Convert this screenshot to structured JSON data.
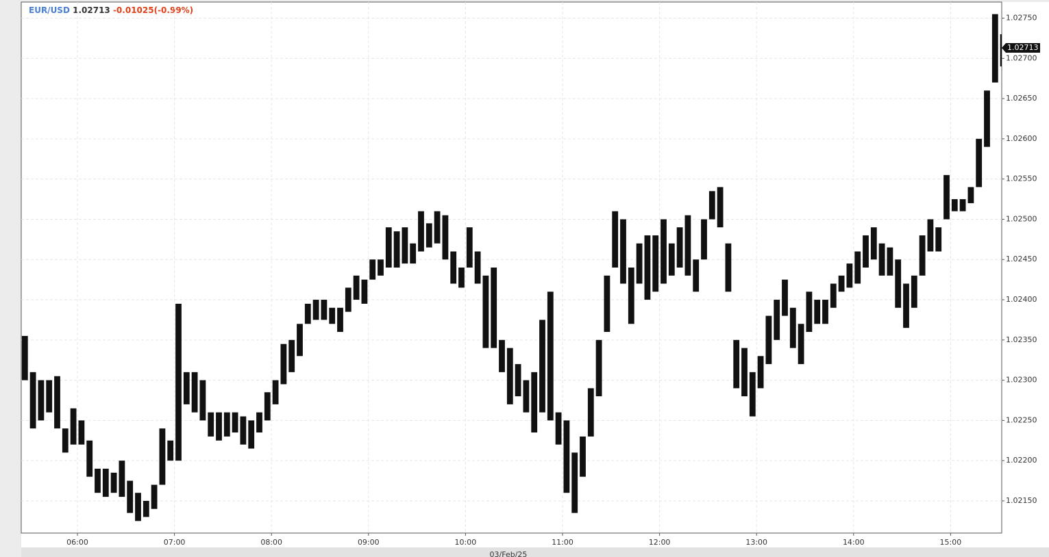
{
  "chart_data": {
    "type": "range_bar",
    "symbol": "EUR/USD",
    "last_price": {
      "value": 1.02713,
      "label": "1.02713"
    },
    "change": "-0.01025(-0.99%)",
    "date_label": "03/Feb/25",
    "x": [
      "05:25",
      "05:30",
      "05:35",
      "05:40",
      "05:45",
      "05:50",
      "05:55",
      "06:00",
      "06:05",
      "06:10",
      "06:15",
      "06:20",
      "06:25",
      "06:30",
      "06:35",
      "06:40",
      "06:45",
      "06:50",
      "06:55",
      "07:00",
      "07:05",
      "07:10",
      "07:15",
      "07:20",
      "07:25",
      "07:30",
      "07:35",
      "07:40",
      "07:45",
      "07:50",
      "07:55",
      "08:00",
      "08:05",
      "08:10",
      "08:15",
      "08:20",
      "08:25",
      "08:30",
      "08:35",
      "08:40",
      "08:45",
      "08:50",
      "08:55",
      "09:00",
      "09:05",
      "09:10",
      "09:15",
      "09:20",
      "09:25",
      "09:30",
      "09:35",
      "09:40",
      "09:45",
      "09:50",
      "09:55",
      "10:00",
      "10:05",
      "10:10",
      "10:15",
      "10:20",
      "10:25",
      "10:30",
      "10:35",
      "10:40",
      "10:45",
      "10:50",
      "10:55",
      "11:00",
      "11:05",
      "11:10",
      "11:15",
      "11:20",
      "11:25",
      "11:30",
      "11:35",
      "11:40",
      "11:45",
      "11:50",
      "11:55",
      "12:00",
      "12:05",
      "12:10",
      "12:15",
      "12:20",
      "12:25",
      "12:30",
      "12:35",
      "12:40",
      "12:45",
      "12:50",
      "12:55",
      "13:00",
      "13:05",
      "13:10",
      "13:15",
      "13:20",
      "13:25",
      "13:30",
      "13:35",
      "13:40",
      "13:45",
      "13:50",
      "13:55",
      "14:00",
      "14:05",
      "14:10",
      "14:15",
      "14:20",
      "14:25",
      "14:30",
      "14:35",
      "14:40",
      "14:45",
      "14:50",
      "14:55",
      "15:00",
      "15:05",
      "15:10",
      "15:15",
      "15:20",
      "15:25",
      "15:30"
    ],
    "series": [
      {
        "name": "EUR/USD",
        "color": "#111111",
        "high": [
          1.02355,
          1.0231,
          1.023,
          1.023,
          1.02305,
          1.0224,
          1.02265,
          1.0225,
          1.02225,
          1.0219,
          1.0219,
          1.02185,
          1.022,
          1.02175,
          1.0216,
          1.0215,
          1.0217,
          1.0224,
          1.02225,
          1.02395,
          1.0231,
          1.0231,
          1.023,
          1.0226,
          1.0226,
          1.0226,
          1.0226,
          1.02255,
          1.0225,
          1.0226,
          1.02285,
          1.023,
          1.02345,
          1.0235,
          1.0237,
          1.02395,
          1.024,
          1.024,
          1.0239,
          1.0239,
          1.02415,
          1.0243,
          1.02425,
          1.0245,
          1.0245,
          1.0249,
          1.02485,
          1.0249,
          1.0247,
          1.0251,
          1.02495,
          1.0251,
          1.02505,
          1.0246,
          1.0244,
          1.0249,
          1.0246,
          1.0243,
          1.0244,
          1.0235,
          1.0234,
          1.0232,
          1.023,
          1.0231,
          1.02375,
          1.0241,
          1.0226,
          1.0225,
          1.0221,
          1.0223,
          1.0229,
          1.0235,
          1.0243,
          1.0251,
          1.025,
          1.0244,
          1.0247,
          1.0248,
          1.0248,
          1.025,
          1.0247,
          1.0249,
          1.02505,
          1.0245,
          1.025,
          1.02535,
          1.0254,
          1.0247,
          1.0235,
          1.0234,
          1.0231,
          1.0233,
          1.0238,
          1.024,
          1.02425,
          1.0239,
          1.0237,
          1.0241,
          1.024,
          1.024,
          1.0242,
          1.0243,
          1.02445,
          1.0246,
          1.0248,
          1.0249,
          1.0247,
          1.02465,
          1.0245,
          1.0242,
          1.0243,
          1.0248,
          1.025,
          1.0249,
          1.02555,
          1.02525,
          1.02525,
          1.0254,
          1.026,
          1.0266,
          1.02755,
          1.0273
        ],
        "low": [
          1.023,
          1.0224,
          1.0225,
          1.0226,
          1.0224,
          1.0221,
          1.0222,
          1.0222,
          1.0218,
          1.0216,
          1.02155,
          1.0216,
          1.02155,
          1.02135,
          1.02125,
          1.0213,
          1.0214,
          1.0217,
          1.022,
          1.022,
          1.0227,
          1.0226,
          1.0225,
          1.0223,
          1.02225,
          1.0223,
          1.02235,
          1.0222,
          1.02215,
          1.02235,
          1.0225,
          1.0227,
          1.02295,
          1.0231,
          1.0233,
          1.0237,
          1.02375,
          1.02375,
          1.0237,
          1.0236,
          1.02385,
          1.024,
          1.02395,
          1.02425,
          1.0243,
          1.0244,
          1.0244,
          1.02445,
          1.02445,
          1.0246,
          1.02465,
          1.0247,
          1.0245,
          1.0242,
          1.02415,
          1.0244,
          1.0242,
          1.0234,
          1.0234,
          1.0231,
          1.0227,
          1.0228,
          1.0226,
          1.02235,
          1.0226,
          1.0225,
          1.0222,
          1.0216,
          1.02135,
          1.0218,
          1.0223,
          1.0228,
          1.0236,
          1.0244,
          1.0242,
          1.0237,
          1.0242,
          1.024,
          1.0241,
          1.0242,
          1.0243,
          1.0244,
          1.0243,
          1.0241,
          1.0245,
          1.025,
          1.0249,
          1.0241,
          1.0229,
          1.0228,
          1.02255,
          1.0229,
          1.0232,
          1.0235,
          1.0238,
          1.0234,
          1.0232,
          1.0236,
          1.0237,
          1.0237,
          1.0239,
          1.0241,
          1.02415,
          1.0242,
          1.0244,
          1.0245,
          1.0243,
          1.0243,
          1.0239,
          1.02365,
          1.0239,
          1.0243,
          1.0246,
          1.0246,
          1.025,
          1.0251,
          1.0251,
          1.0252,
          1.0254,
          1.0259,
          1.0267,
          1.0269
        ]
      }
    ],
    "ylim": [
      1.0211,
      1.0277
    ],
    "yticks": [
      {
        "value": 1.0215,
        "label": "1.02150"
      },
      {
        "value": 1.022,
        "label": "1.02200"
      },
      {
        "value": 1.0225,
        "label": "1.02250"
      },
      {
        "value": 1.023,
        "label": "1.02300"
      },
      {
        "value": 1.0235,
        "label": "1.02350"
      },
      {
        "value": 1.024,
        "label": "1.02400"
      },
      {
        "value": 1.0245,
        "label": "1.02450"
      },
      {
        "value": 1.025,
        "label": "1.02500"
      },
      {
        "value": 1.0255,
        "label": "1.02550"
      },
      {
        "value": 1.026,
        "label": "1.02600"
      },
      {
        "value": 1.0265,
        "label": "1.02650"
      },
      {
        "value": 1.027,
        "label": "1.02700"
      },
      {
        "value": 1.0275,
        "label": "1.02750"
      }
    ],
    "xticks": [
      "06:00",
      "07:00",
      "08:00",
      "09:00",
      "10:00",
      "11:00",
      "12:00",
      "13:00",
      "14:00",
      "15:00"
    ],
    "grid": true
  }
}
